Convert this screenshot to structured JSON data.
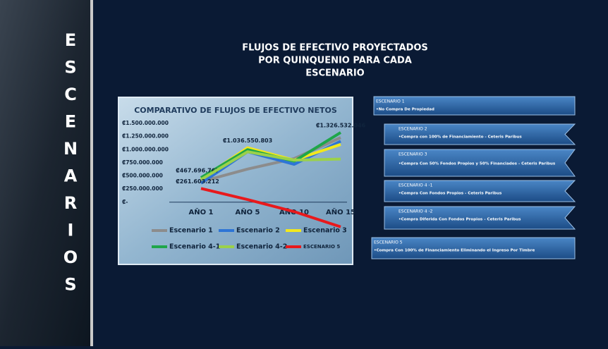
{
  "slide": {
    "side_word": [
      "E",
      "S",
      "C",
      "E",
      "N",
      "A",
      "R",
      "I",
      "O",
      "S"
    ],
    "title_lines": [
      "FLUJOS DE EFECTIVO PROYECTADOS",
      "POR QUINQUENIO PARA CADA",
      "ESCENARIO"
    ],
    "scenarios": [
      {
        "title": "ESCENARIO 1",
        "text": "•No Compra De Propiedad"
      },
      {
        "title": "ESCENARIO 2",
        "text": "•Compra con 100% de Financiamiento   - Ceteris Paribus"
      },
      {
        "title": "ESCENARIO 3",
        "text": "•Compra Con 50% Fondos Propios y 50% Financiados   - Ceteris Paribus"
      },
      {
        "title": "ESCENARIO 4 -1",
        "text": "•Compra Con Fondos Propios   - Ceteris Paribus"
      },
      {
        "title": "ESCENARIO 4 -2",
        "text": "•Compra Diferida Con Fondos Propios   - Ceteris Paribus"
      },
      {
        "title": "ESCENARIO 5",
        "text": "•Compra Con 100% de Financiamiento Eliminando el Ingreso Por Timbre"
      }
    ]
  },
  "chart_data": {
    "type": "line",
    "title": "COMPARATIVO DE FLUJOS DE EFECTIVO NETOS",
    "categories": [
      "AÑO 1",
      "AÑO 5",
      "AÑO 10",
      "AÑO 15"
    ],
    "ylim": [
      -500000000,
      1500000000
    ],
    "yticks": [
      {
        "value": 0,
        "label": "₡-"
      },
      {
        "value": 250000000,
        "label": "₡250.000.000"
      },
      {
        "value": 500000000,
        "label": "₡500.000.000"
      },
      {
        "value": 750000000,
        "label": "₡750.000.000"
      },
      {
        "value": 1000000000,
        "label": "₡1.000.000.000"
      },
      {
        "value": 1250000000,
        "label": "₡1.250.000.000"
      },
      {
        "value": 1500000000,
        "label": "₡1.500.000.000"
      }
    ],
    "series": [
      {
        "name": "Escenario 1",
        "color": "#8c8c8c",
        "values": [
          390000000,
          630000000,
          830000000,
          1230000000
        ]
      },
      {
        "name": "Escenario 2",
        "color": "#2e75d6",
        "values": [
          360000000,
          960000000,
          720000000,
          1160000000
        ]
      },
      {
        "name": "Escenario 3",
        "color": "#f2e81c",
        "values": [
          440000000,
          1036550803,
          800000000,
          1100000000
        ],
        "value_labels": [
          null,
          "₡1.036.550.803",
          null,
          null
        ]
      },
      {
        "name": "Escenario 4-1",
        "color": "#1fa64a",
        "values": [
          467696767,
          1000000000,
          780000000,
          1326532046
        ],
        "value_labels": [
          "₡467.696.767",
          null,
          null,
          "₡1.326.532.046"
        ]
      },
      {
        "name": "Escenario 4-2",
        "color": "#9bd14a",
        "values": [
          430000000,
          960000000,
          800000000,
          820000000
        ]
      },
      {
        "name": "ESCENARIO 5",
        "color": "#e8191c",
        "values": [
          261603212,
          50000000,
          -180000000,
          -470000000
        ],
        "value_labels": [
          "₡261.603.212",
          null,
          null,
          null
        ]
      }
    ]
  }
}
